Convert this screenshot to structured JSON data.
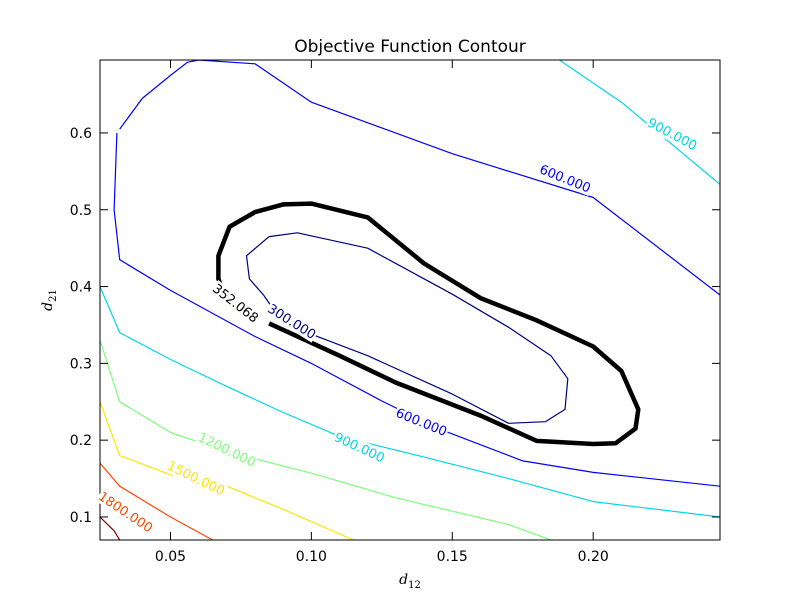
{
  "chart_data": {
    "type": "contour",
    "title": "Objective Function Contour",
    "xlabel": {
      "base": "d",
      "sub": "12"
    },
    "ylabel": {
      "base": "d",
      "sub": "21"
    },
    "xlim": [
      0.025,
      0.245
    ],
    "ylim": [
      0.07,
      0.695
    ],
    "xticks": [
      "0.05",
      "0.10",
      "0.15",
      "0.20"
    ],
    "xtick_values": [
      0.05,
      0.1,
      0.15,
      0.2
    ],
    "yticks": [
      "0.1",
      "0.2",
      "0.3",
      "0.4",
      "0.5",
      "0.6"
    ],
    "ytick_values": [
      0.1,
      0.2,
      0.3,
      0.4,
      0.5,
      0.6
    ],
    "grid": false,
    "levels": [
      {
        "value": 300,
        "label": "300.000",
        "color": "#00007f",
        "width": 1.2,
        "label_at": [
          0.093,
          0.354
        ],
        "label_angle": 32,
        "points": [
          [
            0.09,
            0.352
          ],
          [
            0.12,
            0.31
          ],
          [
            0.15,
            0.26
          ],
          [
            0.17,
            0.222
          ],
          [
            0.183,
            0.224
          ],
          [
            0.19,
            0.24
          ],
          [
            0.191,
            0.28
          ],
          [
            0.185,
            0.31
          ],
          [
            0.17,
            0.347
          ],
          [
            0.15,
            0.39
          ],
          [
            0.12,
            0.45
          ],
          [
            0.095,
            0.47
          ],
          [
            0.085,
            0.465
          ],
          [
            0.077,
            0.44
          ],
          [
            0.078,
            0.41
          ],
          [
            0.083,
            0.389
          ],
          [
            0.09,
            0.352
          ]
        ]
      },
      {
        "value": 352.068,
        "label": "352.068",
        "color": "#000000",
        "width": 4.5,
        "label_at": [
          0.073,
          0.378
        ],
        "label_angle": 38,
        "points": [
          [
            0.085,
            0.352
          ],
          [
            0.11,
            0.31
          ],
          [
            0.13,
            0.275
          ],
          [
            0.16,
            0.232
          ],
          [
            0.18,
            0.199
          ],
          [
            0.2,
            0.195
          ],
          [
            0.208,
            0.196
          ],
          [
            0.215,
            0.215
          ],
          [
            0.216,
            0.24
          ],
          [
            0.21,
            0.29
          ],
          [
            0.2,
            0.322
          ],
          [
            0.18,
            0.356
          ],
          [
            0.16,
            0.385
          ],
          [
            0.14,
            0.43
          ],
          [
            0.12,
            0.49
          ],
          [
            0.1,
            0.508
          ],
          [
            0.09,
            0.507
          ],
          [
            0.08,
            0.497
          ],
          [
            0.071,
            0.478
          ],
          [
            0.067,
            0.44
          ],
          [
            0.067,
            0.41
          ],
          [
            0.069,
            0.39
          ]
        ]
      },
      {
        "value": 600,
        "label": "600.000",
        "color": "#0000ff",
        "width": 1.2,
        "label_at": [
          0.139,
          0.223
        ],
        "label_angle": 22,
        "label2_at": [
          0.19,
          0.54
        ],
        "label2_angle": 22,
        "points": [
          [
            0.031,
            0.6
          ],
          [
            0.03,
            0.5
          ],
          [
            0.032,
            0.435
          ],
          [
            0.05,
            0.395
          ],
          [
            0.08,
            0.335
          ],
          [
            0.1,
            0.3
          ],
          [
            0.125,
            0.251
          ],
          [
            0.145,
            0.215
          ],
          [
            0.175,
            0.173
          ],
          [
            0.2,
            0.158
          ],
          [
            0.245,
            0.14
          ]
        ],
        "points2": [
          [
            0.032,
            0.605
          ],
          [
            0.04,
            0.645
          ],
          [
            0.05,
            0.675
          ],
          [
            0.056,
            0.692
          ],
          [
            0.06,
            0.695
          ],
          [
            0.08,
            0.69
          ],
          [
            0.1,
            0.64
          ],
          [
            0.15,
            0.573
          ],
          [
            0.2,
            0.516
          ],
          [
            0.245,
            0.389
          ]
        ]
      },
      {
        "value": 900,
        "label": "900.000",
        "color": "#00d7e6",
        "width": 1.2,
        "label_at": [
          0.117,
          0.19
        ],
        "label_angle": 25,
        "label2_at": [
          0.228,
          0.598
        ],
        "label2_angle": 28,
        "points": [
          [
            0.025,
            0.4
          ],
          [
            0.032,
            0.34
          ],
          [
            0.05,
            0.305
          ],
          [
            0.07,
            0.27
          ],
          [
            0.09,
            0.236
          ],
          [
            0.11,
            0.205
          ],
          [
            0.14,
            0.178
          ],
          [
            0.17,
            0.15
          ],
          [
            0.2,
            0.12
          ],
          [
            0.245,
            0.1
          ]
        ],
        "points2": [
          [
            0.188,
            0.695
          ],
          [
            0.21,
            0.64
          ],
          [
            0.245,
            0.533
          ]
        ]
      },
      {
        "value": 1200,
        "label": "1200.000",
        "color": "#7cff79",
        "width": 1.2,
        "label_at": [
          0.07,
          0.187
        ],
        "label_angle": 26,
        "points": [
          [
            0.025,
            0.33
          ],
          [
            0.032,
            0.25
          ],
          [
            0.05,
            0.21
          ],
          [
            0.07,
            0.185
          ],
          [
            0.1,
            0.157
          ],
          [
            0.13,
            0.125
          ],
          [
            0.17,
            0.09
          ],
          [
            0.185,
            0.07
          ]
        ]
      },
      {
        "value": 1500,
        "label": "1500.000",
        "color": "#ffe600",
        "width": 1.2,
        "label_at": [
          0.059,
          0.15
        ],
        "label_angle": 26,
        "points": [
          [
            0.025,
            0.25
          ],
          [
            0.032,
            0.18
          ],
          [
            0.05,
            0.155
          ],
          [
            0.07,
            0.14
          ],
          [
            0.09,
            0.11
          ],
          [
            0.115,
            0.07
          ]
        ]
      },
      {
        "value": 1800,
        "label": "1800.000",
        "color": "#ff4a00",
        "width": 1.2,
        "label_at": [
          0.034,
          0.106
        ],
        "label_angle": 34,
        "points": [
          [
            0.025,
            0.17
          ],
          [
            0.032,
            0.14
          ],
          [
            0.05,
            0.1
          ],
          [
            0.065,
            0.07
          ]
        ]
      },
      {
        "value": 2100,
        "label": "",
        "color": "#7f0000",
        "width": 1.2,
        "points": [
          [
            0.025,
            0.1
          ],
          [
            0.03,
            0.082
          ],
          [
            0.032,
            0.07
          ]
        ]
      }
    ]
  }
}
